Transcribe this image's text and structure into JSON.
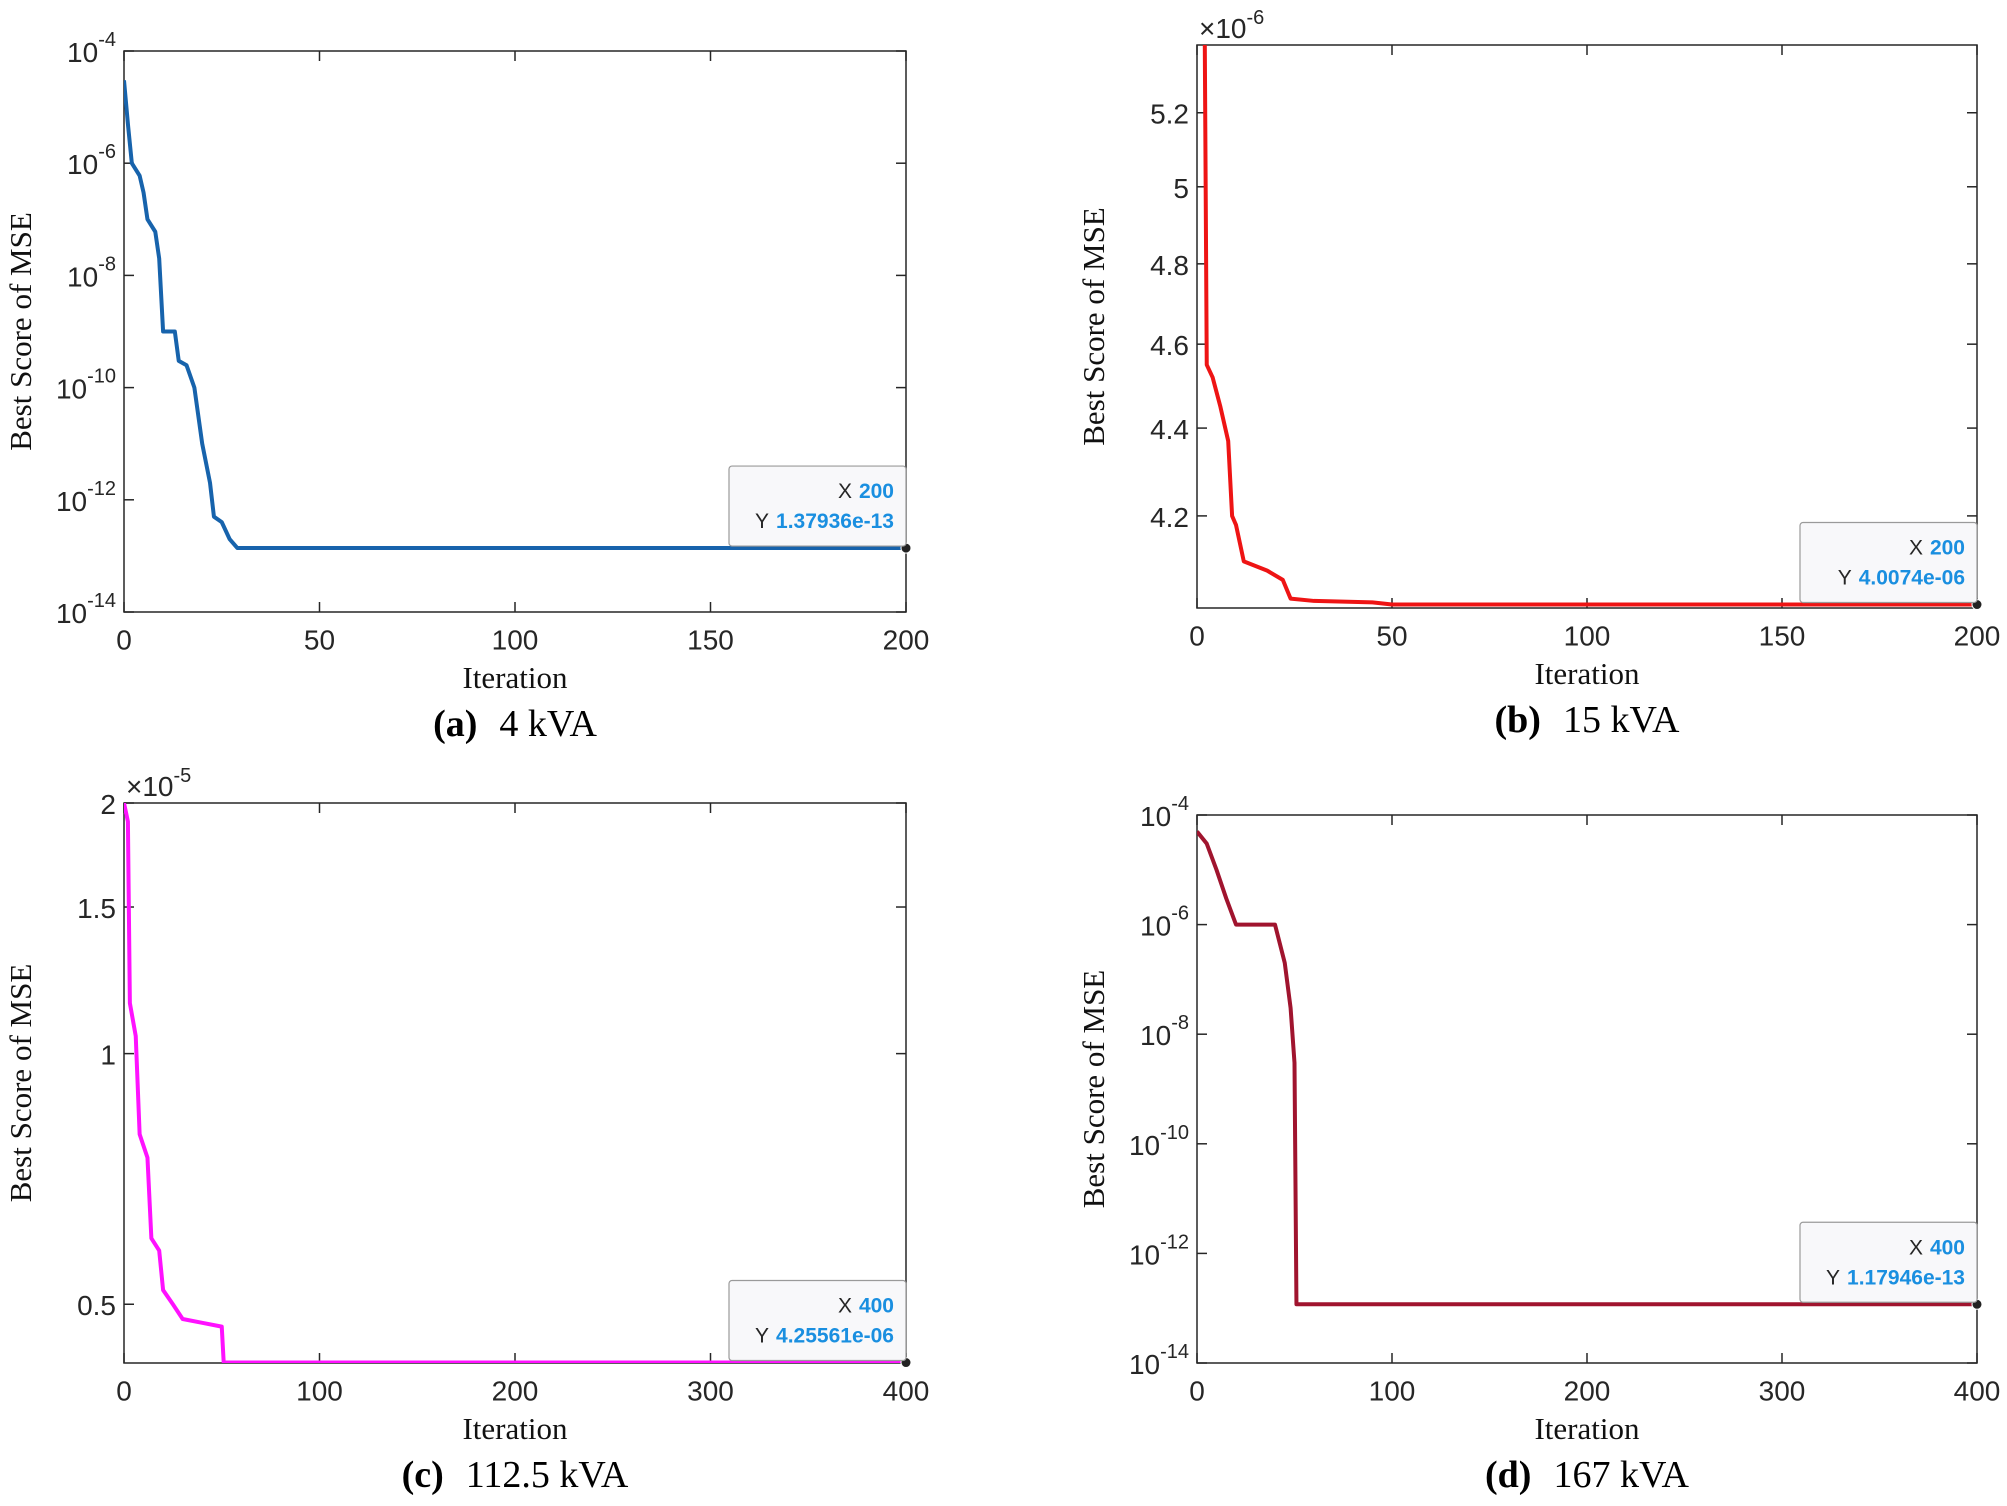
{
  "chart_data": [
    {
      "type": "line",
      "caption_label": "(a)",
      "caption": "4 kVA",
      "xlabel": "Iteration",
      "ylabel": "Best Score of MSE",
      "color": "#1763ac",
      "ylog": true,
      "x": [
        0,
        1,
        2,
        4,
        5,
        6,
        8,
        9,
        10,
        13,
        14,
        16,
        18,
        20,
        22,
        23,
        25,
        27,
        29,
        200
      ],
      "values": [
        3e-05,
        5e-06,
        1e-06,
        6e-07,
        3e-07,
        1e-07,
        6e-08,
        2e-08,
        1e-09,
        1e-09,
        3e-10,
        2.5e-10,
        1e-10,
        1e-11,
        2e-12,
        5e-13,
        4e-13,
        2e-13,
        1.37936e-13,
        1.37936e-13
      ],
      "xlim": [
        0,
        200
      ],
      "xticks": [
        0,
        50,
        100,
        150,
        200
      ],
      "ylim": [
        1e-14,
        0.0001
      ],
      "yticks": [
        {
          "value": 1e-14,
          "label": "10",
          "exponent": "-14"
        },
        {
          "value": 1e-12,
          "label": "10",
          "exponent": "-12"
        },
        {
          "value": 1e-10,
          "label": "10",
          "exponent": "-10"
        },
        {
          "value": 1e-08,
          "label": "10",
          "exponent": "-8"
        },
        {
          "value": 1e-06,
          "label": "10",
          "exponent": "-6"
        },
        {
          "value": 0.0001,
          "label": "10",
          "exponent": "-4"
        }
      ],
      "datatip": {
        "x_name": "X",
        "y_name": "Y",
        "x": 200,
        "y": 1.37936e-13,
        "y_label": "1.37936e-13"
      }
    },
    {
      "type": "line",
      "caption_label": "(b)",
      "caption": "15 kVA",
      "xlabel": "Iteration",
      "ylabel": "Best Score of MSE",
      "color": "#ee1414",
      "ylog": true,
      "x": [
        2,
        2.5,
        4,
        6,
        8,
        9,
        10,
        12,
        18,
        22,
        24,
        30,
        45,
        50,
        200
      ],
      "values": [
        5.39e-06,
        4.55e-06,
        4.52e-06,
        4.45e-06,
        4.37e-06,
        4.2e-06,
        4.18e-06,
        4.1e-06,
        4.08e-06,
        4.06e-06,
        4.02e-06,
        4.015e-06,
        4.012e-06,
        4.0074e-06,
        4.0074e-06
      ],
      "xlim": [
        0,
        200
      ],
      "xticks": [
        0,
        50,
        100,
        150,
        200
      ],
      "ylim": [
        4e-06,
        5.39e-06
      ],
      "yticks": [
        {
          "value": 4.2e-06,
          "label": "4.2"
        },
        {
          "value": 4.4e-06,
          "label": "4.4"
        },
        {
          "value": 4.6e-06,
          "label": "4.6"
        },
        {
          "value": 4.8e-06,
          "label": "4.8"
        },
        {
          "value": 5e-06,
          "label": "5"
        },
        {
          "value": 5.2e-06,
          "label": "5.2"
        }
      ],
      "y_multiplier": {
        "base": "×10",
        "exponent": "-6"
      },
      "datatip": {
        "x_name": "X",
        "y_name": "Y",
        "x": 200,
        "y": 4.0074e-06,
        "y_label": "4.0074e-06"
      }
    },
    {
      "type": "line",
      "caption_label": "(c)",
      "caption": "112.5 kVA",
      "xlabel": "Iteration",
      "ylabel": "Best Score of MSE",
      "color": "#ff11ff",
      "ylog": true,
      "x": [
        0,
        2,
        3,
        6,
        8,
        12,
        14,
        18,
        20,
        25,
        30,
        40,
        50,
        51,
        400
      ],
      "values": [
        2e-05,
        1.9e-05,
        1.15e-05,
        1.05e-05,
        8e-06,
        7.5e-06,
        6e-06,
        5.8e-06,
        5.2e-06,
        5e-06,
        4.8e-06,
        4.75e-06,
        4.7e-06,
        4.25561e-06,
        4.25561e-06
      ],
      "xlim": [
        0,
        400
      ],
      "xticks": [
        0,
        100,
        200,
        300,
        400
      ],
      "ylim": [
        4.25e-06,
        2e-05
      ],
      "yticks": [
        {
          "value": 5e-06,
          "label": "0.5"
        },
        {
          "value": 1e-05,
          "label": "1"
        },
        {
          "value": 1.5e-05,
          "label": "1.5"
        },
        {
          "value": 2e-05,
          "label": "2"
        }
      ],
      "y_multiplier": {
        "base": "×10",
        "exponent": "-5"
      },
      "datatip": {
        "x_name": "X",
        "y_name": "Y",
        "x": 400,
        "y": 4.25561e-06,
        "y_label": "4.25561e-06"
      }
    },
    {
      "type": "line",
      "caption_label": "(d)",
      "caption": "167 kVA",
      "xlabel": "Iteration",
      "ylabel": "Best Score of MSE",
      "color": "#a0142e",
      "ylog": true,
      "x": [
        0,
        5,
        10,
        15,
        20,
        40,
        45,
        48,
        50,
        51,
        400
      ],
      "values": [
        5e-05,
        3e-05,
        1e-05,
        3e-06,
        1e-06,
        1e-06,
        2e-07,
        3e-08,
        3e-09,
        1.17946e-13,
        1.17946e-13
      ],
      "xlim": [
        0,
        400
      ],
      "xticks": [
        0,
        100,
        200,
        300,
        400
      ],
      "ylim": [
        1e-14,
        0.0001
      ],
      "yticks": [
        {
          "value": 1e-14,
          "label": "10",
          "exponent": "-14"
        },
        {
          "value": 1e-12,
          "label": "10",
          "exponent": "-12"
        },
        {
          "value": 1e-10,
          "label": "10",
          "exponent": "-10"
        },
        {
          "value": 1e-08,
          "label": "10",
          "exponent": "-8"
        },
        {
          "value": 1e-06,
          "label": "10",
          "exponent": "-6"
        },
        {
          "value": 0.0001,
          "label": "10",
          "exponent": "-4"
        }
      ],
      "datatip": {
        "x_name": "X",
        "y_name": "Y",
        "x": 400,
        "y": 1.17946e-13,
        "y_label": "1.17946e-13"
      }
    }
  ]
}
